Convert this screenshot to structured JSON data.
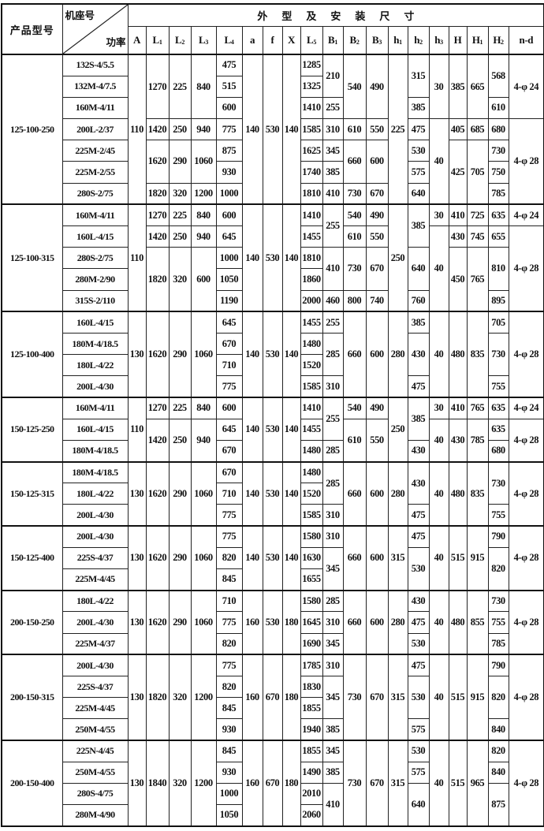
{
  "header": {
    "product_model": "产品型号",
    "frame_no": "机座号",
    "power": "功率",
    "dimensions_title": "外型及安装尺寸",
    "columns": [
      {
        "main": "A",
        "sub": ""
      },
      {
        "main": "L",
        "sub": "1"
      },
      {
        "main": "L",
        "sub": "2"
      },
      {
        "main": "L",
        "sub": "3"
      },
      {
        "main": "L",
        "sub": "4"
      },
      {
        "main": "a",
        "sub": ""
      },
      {
        "main": "f",
        "sub": ""
      },
      {
        "main": "X",
        "sub": ""
      },
      {
        "main": "L",
        "sub": "5"
      },
      {
        "main": "B",
        "sub": "1"
      },
      {
        "main": "B",
        "sub": "2"
      },
      {
        "main": "B",
        "sub": "3"
      },
      {
        "main": "h",
        "sub": "1"
      },
      {
        "main": "h",
        "sub": "2"
      },
      {
        "main": "h",
        "sub": "3"
      },
      {
        "main": "H",
        "sub": ""
      },
      {
        "main": "H",
        "sub": "1"
      },
      {
        "main": "H",
        "sub": "2"
      },
      {
        "main": "n-d",
        "sub": ""
      }
    ]
  },
  "groups": [
    {
      "model": "125-100-250",
      "rows": [
        [
          "132S-4/5.5",
          "110",
          "1270",
          "225",
          "840",
          "475",
          "140",
          "530",
          "140",
          "1285",
          "210",
          "540",
          "490",
          "225",
          "315",
          "30",
          "385",
          "665",
          "568",
          "4-φ 24"
        ],
        [
          "132M-4/7.5",
          null,
          null,
          null,
          null,
          "515",
          null,
          null,
          null,
          "1325",
          null,
          null,
          null,
          null,
          null,
          null,
          null,
          null,
          null,
          null
        ],
        [
          "160M-4/11",
          null,
          null,
          null,
          null,
          "600",
          null,
          null,
          null,
          "1410",
          "255",
          null,
          null,
          null,
          "385",
          null,
          null,
          null,
          "610",
          null
        ],
        [
          "200L-2/37",
          null,
          "1420",
          "250",
          "940",
          "775",
          null,
          null,
          null,
          "1585",
          "310",
          "610",
          "550",
          null,
          "475",
          "40",
          "405",
          "685",
          "680",
          "4-φ 28"
        ],
        [
          "225M-2/45",
          null,
          "1620",
          "290",
          "1060",
          "875",
          null,
          null,
          null,
          "1625",
          "345",
          "660",
          "600",
          null,
          "530",
          null,
          "425",
          "705",
          "730",
          null
        ],
        [
          "225M-2/55",
          null,
          null,
          null,
          null,
          "930",
          null,
          null,
          null,
          "1740",
          "385",
          null,
          null,
          null,
          "575",
          null,
          null,
          null,
          "750",
          null
        ],
        [
          "280S-2/75",
          null,
          "1820",
          "320",
          "1200",
          "1000",
          null,
          null,
          null,
          "1810",
          "410",
          "730",
          "670",
          null,
          "640",
          null,
          null,
          null,
          "785",
          null
        ]
      ]
    },
    {
      "model": "125-100-315",
      "rows": [
        [
          "160M-4/11",
          "110",
          "1270",
          "225",
          "840",
          "600",
          "140",
          "530",
          "140",
          "1410",
          "255",
          "540",
          "490",
          "250",
          "385",
          "30",
          "410",
          "725",
          "635",
          "4-φ 24"
        ],
        [
          "160L-4/15",
          null,
          "1420",
          "250",
          "940",
          "645",
          null,
          null,
          null,
          "1455",
          null,
          "610",
          "550",
          null,
          null,
          "40",
          "430",
          "745",
          "655",
          "4-φ 28"
        ],
        [
          "280S-2/75",
          null,
          "1820",
          "320",
          "600",
          "1000",
          null,
          null,
          null,
          "1810",
          "410",
          "730",
          "670",
          null,
          "640",
          null,
          "450",
          "765",
          "810",
          null
        ],
        [
          "280M-2/90",
          null,
          null,
          null,
          null,
          "1050",
          null,
          null,
          null,
          "1860",
          null,
          null,
          null,
          null,
          null,
          null,
          null,
          null,
          null,
          null
        ],
        [
          "315S-2/110",
          null,
          null,
          null,
          null,
          "1190",
          null,
          null,
          null,
          "2000",
          "460",
          "800",
          "740",
          null,
          "760",
          null,
          null,
          null,
          "895",
          null
        ]
      ]
    },
    {
      "model": "125-100-400",
      "rows": [
        [
          "160L-4/15",
          "130",
          "1620",
          "290",
          "1060",
          "645",
          "140",
          "530",
          "140",
          "1455",
          "255",
          "660",
          "600",
          "280",
          "385",
          "40",
          "480",
          "835",
          "705",
          "4-φ 28"
        ],
        [
          "180M-4/18.5",
          null,
          null,
          null,
          null,
          "670",
          null,
          null,
          null,
          "1480",
          "285",
          null,
          null,
          null,
          "430",
          null,
          null,
          null,
          "730",
          null
        ],
        [
          "180L-4/22",
          null,
          null,
          null,
          null,
          "710",
          null,
          null,
          null,
          "1520",
          null,
          null,
          null,
          null,
          null,
          null,
          null,
          null,
          null,
          null
        ],
        [
          "200L-4/30",
          null,
          null,
          null,
          null,
          "775",
          null,
          null,
          null,
          "1585",
          "310",
          null,
          null,
          null,
          "475",
          null,
          null,
          null,
          "755",
          null
        ]
      ]
    },
    {
      "model": "150-125-250",
      "rows": [
        [
          "160M-4/11",
          "110",
          "1270",
          "225",
          "840",
          "600",
          "140",
          "530",
          "140",
          "1410",
          "255",
          "540",
          "490",
          "250",
          "385",
          "30",
          "410",
          "765",
          "635",
          "4-φ 24"
        ],
        [
          "160L-4/15",
          null,
          "1420",
          "250",
          "940",
          "645",
          null,
          null,
          null,
          "1455",
          null,
          "610",
          "550",
          null,
          null,
          "40",
          "430",
          "785",
          "635",
          "4-φ 28"
        ],
        [
          "180M-4/18.5",
          null,
          null,
          null,
          null,
          "670",
          null,
          null,
          null,
          "1480",
          "285",
          null,
          null,
          null,
          "430",
          null,
          null,
          null,
          "680",
          null
        ]
      ]
    },
    {
      "model": "150-125-315",
      "rows": [
        [
          "180M-4/18.5",
          "130",
          "1620",
          "290",
          "1060",
          "670",
          "140",
          "530",
          "140",
          "1480",
          "285",
          "660",
          "600",
          "280",
          "430",
          "40",
          "480",
          "835",
          "730",
          "4-φ 28"
        ],
        [
          "180L-4/22",
          null,
          null,
          null,
          null,
          "710",
          null,
          null,
          null,
          "1520",
          null,
          null,
          null,
          null,
          null,
          null,
          null,
          null,
          null,
          null
        ],
        [
          "200L-4/30",
          null,
          null,
          null,
          null,
          "775",
          null,
          null,
          null,
          "1585",
          "310",
          null,
          null,
          null,
          "475",
          null,
          null,
          null,
          "755",
          null
        ]
      ]
    },
    {
      "model": "150-125-400",
      "rows": [
        [
          "200L-4/30",
          "130",
          "1620",
          "290",
          "1060",
          "775",
          "140",
          "530",
          "140",
          "1580",
          "310",
          "660",
          "600",
          "315",
          "475",
          "40",
          "515",
          "915",
          "790",
          "4-φ 28"
        ],
        [
          "225S-4/37",
          null,
          null,
          null,
          null,
          "820",
          null,
          null,
          null,
          "1630",
          "345",
          null,
          null,
          null,
          "530",
          null,
          null,
          null,
          "820",
          null
        ],
        [
          "225M-4/45",
          null,
          null,
          null,
          null,
          "845",
          null,
          null,
          null,
          "1655",
          null,
          null,
          null,
          null,
          null,
          null,
          null,
          null,
          null,
          null
        ]
      ]
    },
    {
      "model": "200-150-250",
      "rows": [
        [
          "180L-4/22",
          "130",
          "1620",
          "290",
          "1060",
          "710",
          "160",
          "530",
          "180",
          "1580",
          "285",
          "660",
          "600",
          "280",
          "430",
          "40",
          "480",
          "855",
          "730",
          "4-φ 28"
        ],
        [
          "200L-4/30",
          null,
          null,
          null,
          null,
          "775",
          null,
          null,
          null,
          "1645",
          "310",
          null,
          null,
          null,
          "475",
          null,
          null,
          null,
          "755",
          null
        ],
        [
          "225M-4/37",
          null,
          null,
          null,
          null,
          "820",
          null,
          null,
          null,
          "1690",
          "345",
          null,
          null,
          null,
          "530",
          null,
          null,
          null,
          "785",
          null
        ]
      ]
    },
    {
      "model": "200-150-315",
      "rows": [
        [
          "200L-4/30",
          "130",
          "1820",
          "320",
          "1200",
          "775",
          "160",
          "670",
          "180",
          "1785",
          "310",
          "730",
          "670",
          "315",
          "475",
          "40",
          "515",
          "915",
          "790",
          "4-φ 28"
        ],
        [
          "225S-4/37",
          null,
          null,
          null,
          null,
          "820",
          null,
          null,
          null,
          "1830",
          "345",
          null,
          null,
          null,
          "530",
          null,
          null,
          null,
          "820",
          null
        ],
        [
          "225M-4/45",
          null,
          null,
          null,
          null,
          "845",
          null,
          null,
          null,
          "1855",
          null,
          null,
          null,
          null,
          null,
          null,
          null,
          null,
          null,
          null
        ],
        [
          "250M-4/55",
          null,
          null,
          null,
          null,
          "930",
          null,
          null,
          null,
          "1940",
          "385",
          null,
          null,
          null,
          "575",
          null,
          null,
          null,
          "840",
          null
        ]
      ]
    },
    {
      "model": "200-150-400",
      "rows": [
        [
          "225N-4/45",
          "130",
          "1840",
          "320",
          "1200",
          "845",
          "160",
          "670",
          "180",
          "1855",
          "345",
          "730",
          "670",
          "315",
          "530",
          "40",
          "515",
          "965",
          "820",
          "4-φ 28"
        ],
        [
          "250M-4/55",
          null,
          null,
          null,
          null,
          "930",
          null,
          null,
          null,
          "1490",
          "385",
          null,
          null,
          null,
          "575",
          null,
          null,
          null,
          "840",
          null
        ],
        [
          "280S-4/75",
          null,
          null,
          null,
          null,
          "1000",
          null,
          null,
          null,
          "2010",
          "410",
          null,
          null,
          null,
          "640",
          null,
          null,
          null,
          "875",
          null
        ],
        [
          "280M-4/90",
          null,
          null,
          null,
          null,
          "1050",
          null,
          null,
          null,
          "2060",
          null,
          null,
          null,
          null,
          null,
          null,
          null,
          null,
          null,
          null
        ]
      ]
    }
  ]
}
